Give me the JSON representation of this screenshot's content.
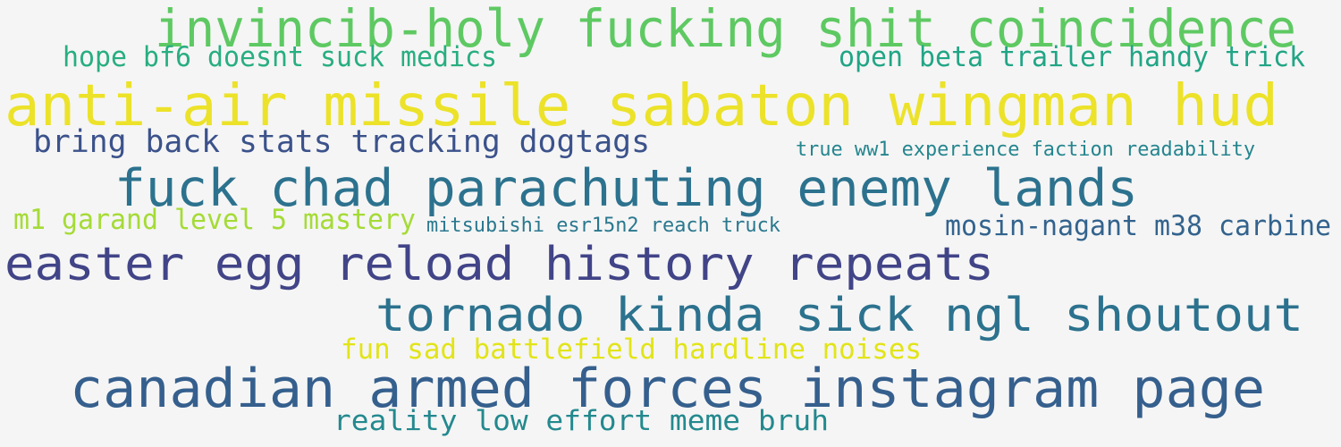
{
  "background": "#f5f5f5",
  "phrases": [
    {
      "text": "invincib-holy fucking shit coincidence",
      "color": "#5ec962"
    },
    {
      "text": "hope bf6 doesnt suck medics",
      "color": "#28ae80"
    },
    {
      "text": "open beta trailer handy trick",
      "color": "#21a585"
    },
    {
      "text": "anti-air missile sabaton wingman hud",
      "color": "#ece229"
    },
    {
      "text": "bring back stats tracking dogtags",
      "color": "#3b528b"
    },
    {
      "text": "true ww1 experience faction readability",
      "color": "#25858e"
    },
    {
      "text": "fuck chad parachuting enemy lands",
      "color": "#2c728e"
    },
    {
      "text": "m1 garand level 5 mastery",
      "color": "#a5db36"
    },
    {
      "text": "mitsubishi esr15n2 reach truck",
      "color": "#2a788e"
    },
    {
      "text": "mosin-nagant m38 carbine",
      "color": "#33638d"
    },
    {
      "text": "easter egg reload history repeats",
      "color": "#414487"
    },
    {
      "text": "tornado kinda sick ngl shoutout",
      "color": "#2c728e"
    },
    {
      "text": "fun sad battlefield hardline noises",
      "color": "#e2e418"
    },
    {
      "text": "canadian armed forces instagram page",
      "color": "#355f8d"
    },
    {
      "text": "reality low effort meme bruh",
      "color": "#23898e"
    }
  ]
}
